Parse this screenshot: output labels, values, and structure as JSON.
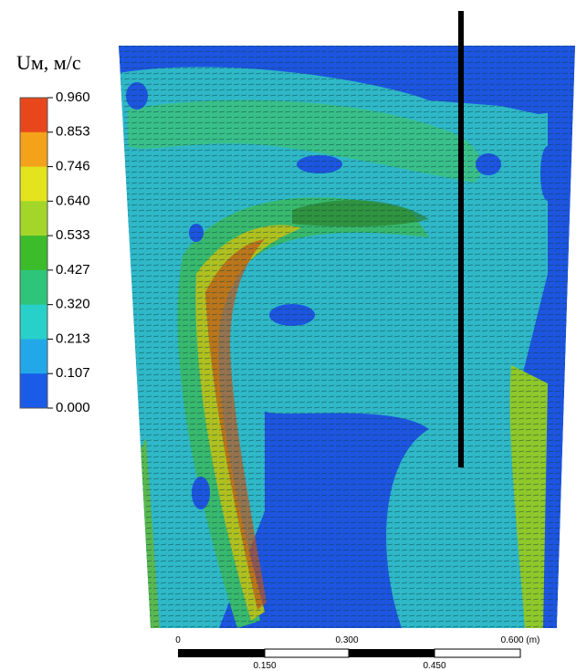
{
  "legend": {
    "title": "Uм, м/с",
    "labels": [
      "0.960",
      "0.853",
      "0.746",
      "0.640",
      "0.533",
      "0.427",
      "0.320",
      "0.213",
      "0.107",
      "0.000"
    ]
  },
  "scale_bar": {
    "top_labels": [
      "0",
      "0.300",
      "0.600 (m)"
    ],
    "bottom_labels": [
      "0.150",
      "0.450"
    ]
  }
}
